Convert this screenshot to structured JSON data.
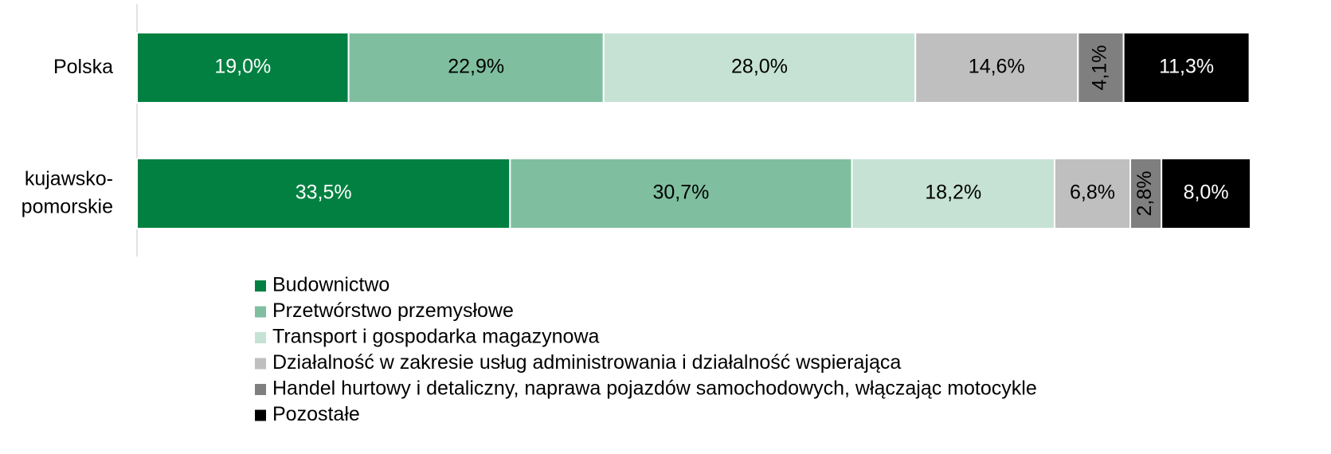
{
  "chart_data": {
    "type": "stacked-bar-horizontal",
    "categories": [
      "Polska",
      "kujawsko-pomorskie"
    ],
    "xlim": [
      0,
      100
    ],
    "series": [
      {
        "name": "Budownictwo",
        "color": "#028041",
        "values": [
          19.0,
          33.5
        ],
        "value_labels": [
          "19,0%",
          "33,5%"
        ]
      },
      {
        "name": "Przetwórstwo przemysłowe",
        "color": "#7fbf9f",
        "values": [
          22.9,
          30.7
        ],
        "value_labels": [
          "22,9%",
          "30,7%"
        ]
      },
      {
        "name": "Transport i gospodarka magazynowa",
        "color": "#c6e2d4",
        "values": [
          28.0,
          18.2
        ],
        "value_labels": [
          "28,0%",
          "18,2%"
        ]
      },
      {
        "name": "Działalność w zakresie usług administrowania i działalność wspierająca",
        "color": "#bfbfbf",
        "values": [
          14.6,
          6.8
        ],
        "value_labels": [
          "14,6%",
          "6,8%"
        ]
      },
      {
        "name": "Handel hurtowy i detaliczny, naprawa pojazdów samochodowych, włączając motocykle",
        "color": "#7f7f7f",
        "values": [
          4.1,
          2.8
        ],
        "value_labels": [
          "4,1%",
          "2,8%"
        ]
      },
      {
        "name": "Pozostałe",
        "color": "#000000",
        "values": [
          11.3,
          8.0
        ],
        "value_labels": [
          "11,3%",
          "8,0%"
        ]
      }
    ],
    "legend": "bottom"
  }
}
